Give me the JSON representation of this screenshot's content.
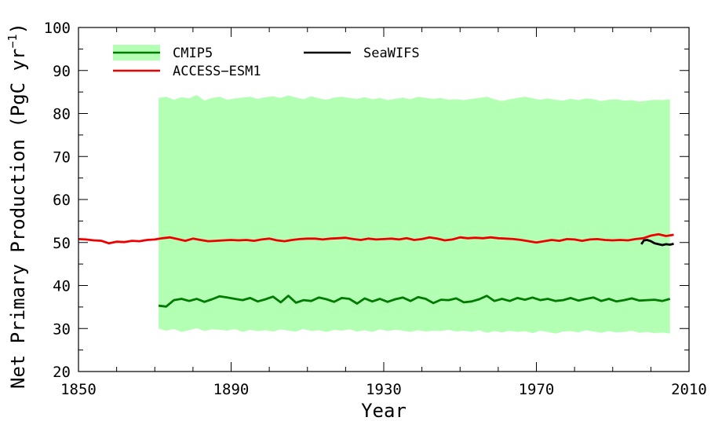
{
  "chart_data": {
    "type": "line",
    "xlabel": "Year",
    "ylabel": "Net Primary Production (PgC yr",
    "ylabel_sup": "−1",
    "ylabel_close": ")",
    "xlim": [
      1850,
      2010
    ],
    "ylim": [
      20,
      100
    ],
    "xticks": [
      1850,
      1890,
      1930,
      1970,
      2010
    ],
    "yticks": [
      20,
      30,
      40,
      50,
      60,
      70,
      80,
      90,
      100
    ],
    "grid": false,
    "legend_position": "top-left",
    "series": [
      {
        "name": "CMIP5",
        "kind": "band_with_line",
        "line_color": "#007a00",
        "fill_color": "#b3ffb3",
        "x": [
          1871,
          1873,
          1875,
          1877,
          1879,
          1881,
          1883,
          1885,
          1887,
          1889,
          1891,
          1893,
          1895,
          1897,
          1899,
          1901,
          1903,
          1905,
          1907,
          1909,
          1911,
          1913,
          1915,
          1917,
          1919,
          1921,
          1923,
          1925,
          1927,
          1929,
          1931,
          1933,
          1935,
          1937,
          1939,
          1941,
          1943,
          1945,
          1947,
          1949,
          1951,
          1953,
          1955,
          1957,
          1959,
          1961,
          1963,
          1965,
          1967,
          1969,
          1971,
          1973,
          1975,
          1977,
          1979,
          1981,
          1983,
          1985,
          1987,
          1989,
          1991,
          1993,
          1995,
          1997,
          1999,
          2001,
          2003,
          2005
        ],
        "mean": [
          35.3,
          35.1,
          36.6,
          36.9,
          36.4,
          36.9,
          36.2,
          36.8,
          37.5,
          37.2,
          36.9,
          36.6,
          37.1,
          36.3,
          36.8,
          37.4,
          36.1,
          37.6,
          36.0,
          36.6,
          36.4,
          37.2,
          36.8,
          36.2,
          37.1,
          36.9,
          35.8,
          37.0,
          36.3,
          36.9,
          36.2,
          36.8,
          37.2,
          36.4,
          37.3,
          36.9,
          35.9,
          36.7,
          36.6,
          37.0,
          36.1,
          36.3,
          36.8,
          37.6,
          36.4,
          36.9,
          36.4,
          37.1,
          36.7,
          37.2,
          36.6,
          36.9,
          36.4,
          36.6,
          37.1,
          36.5,
          36.9,
          37.2,
          36.4,
          36.9,
          36.3,
          36.6,
          37.0,
          36.5,
          36.6,
          36.7,
          36.4,
          36.9
        ],
        "upper": [
          83.6,
          83.9,
          83.2,
          83.8,
          83.5,
          84.3,
          83.0,
          83.6,
          83.9,
          83.2,
          83.5,
          83.7,
          83.9,
          83.4,
          83.8,
          84.0,
          83.6,
          84.2,
          83.7,
          83.3,
          84.0,
          83.5,
          83.2,
          83.7,
          83.9,
          83.6,
          83.4,
          83.8,
          83.3,
          83.6,
          83.1,
          83.4,
          83.7,
          83.3,
          83.9,
          83.6,
          83.4,
          83.6,
          83.2,
          83.3,
          83.1,
          83.4,
          83.6,
          83.9,
          83.3,
          82.9,
          83.3,
          83.6,
          83.9,
          83.5,
          83.2,
          83.5,
          83.2,
          83.0,
          83.4,
          83.1,
          83.5,
          83.3,
          82.9,
          83.2,
          83.3,
          83.0,
          83.1,
          82.8,
          83.0,
          83.2,
          83.1,
          83.3
        ],
        "lower": [
          30.0,
          29.5,
          29.9,
          29.2,
          29.6,
          30.1,
          29.4,
          29.8,
          29.7,
          29.5,
          29.9,
          29.2,
          29.7,
          29.4,
          29.6,
          29.3,
          29.8,
          29.5,
          29.3,
          29.9,
          29.4,
          29.6,
          29.2,
          29.7,
          29.5,
          29.8,
          29.3,
          29.6,
          29.2,
          29.8,
          29.4,
          29.7,
          29.5,
          29.2,
          29.6,
          29.3,
          29.5,
          29.4,
          29.7,
          29.3,
          29.5,
          29.2,
          29.6,
          29.0,
          29.4,
          29.1,
          29.5,
          29.2,
          29.4,
          28.9,
          29.5,
          29.2,
          28.8,
          29.3,
          29.4,
          29.1,
          29.6,
          29.3,
          29.0,
          29.4,
          29.1,
          29.2,
          29.5,
          29.0,
          29.2,
          28.9,
          29.1,
          28.8
        ]
      },
      {
        "name": "ACCESS−ESM1",
        "kind": "line",
        "color": "#ee0000",
        "x": [
          1850,
          1852,
          1854,
          1856,
          1858,
          1860,
          1862,
          1864,
          1866,
          1868,
          1870,
          1872,
          1874,
          1876,
          1878,
          1880,
          1882,
          1884,
          1886,
          1888,
          1890,
          1892,
          1894,
          1896,
          1898,
          1900,
          1902,
          1904,
          1906,
          1908,
          1910,
          1912,
          1914,
          1916,
          1918,
          1920,
          1922,
          1924,
          1926,
          1928,
          1930,
          1932,
          1934,
          1936,
          1938,
          1940,
          1942,
          1944,
          1946,
          1948,
          1950,
          1952,
          1954,
          1956,
          1958,
          1960,
          1962,
          1964,
          1966,
          1968,
          1970,
          1972,
          1974,
          1976,
          1978,
          1980,
          1982,
          1984,
          1986,
          1988,
          1990,
          1992,
          1994,
          1996,
          1998,
          2000,
          2002,
          2004,
          2006
        ],
        "y": [
          50.8,
          50.7,
          50.5,
          50.4,
          49.8,
          50.2,
          50.1,
          50.4,
          50.3,
          50.6,
          50.7,
          51.0,
          51.2,
          50.8,
          50.4,
          50.9,
          50.6,
          50.3,
          50.4,
          50.5,
          50.6,
          50.5,
          50.6,
          50.4,
          50.7,
          50.9,
          50.5,
          50.3,
          50.6,
          50.8,
          50.9,
          50.9,
          50.7,
          50.9,
          51.0,
          51.1,
          50.8,
          50.6,
          50.9,
          50.7,
          50.8,
          50.9,
          50.7,
          51.0,
          50.6,
          50.8,
          51.2,
          50.9,
          50.5,
          50.7,
          51.2,
          51.0,
          51.1,
          51.0,
          51.2,
          51.0,
          50.9,
          50.8,
          50.6,
          50.3,
          50.0,
          50.3,
          50.6,
          50.4,
          50.8,
          50.7,
          50.4,
          50.7,
          50.8,
          50.6,
          50.5,
          50.6,
          50.5,
          50.8,
          51.0,
          51.6,
          51.9,
          51.5,
          51.8
        ]
      },
      {
        "name": "SeaWIFS",
        "kind": "line",
        "color": "#000000",
        "x": [
          1997.5,
          1998.2,
          1999,
          2000,
          2001,
          2002,
          2003,
          2004,
          2005,
          2006
        ],
        "y": [
          49.6,
          50.5,
          50.6,
          50.3,
          49.8,
          49.6,
          49.4,
          49.6,
          49.5,
          49.7
        ]
      }
    ]
  }
}
